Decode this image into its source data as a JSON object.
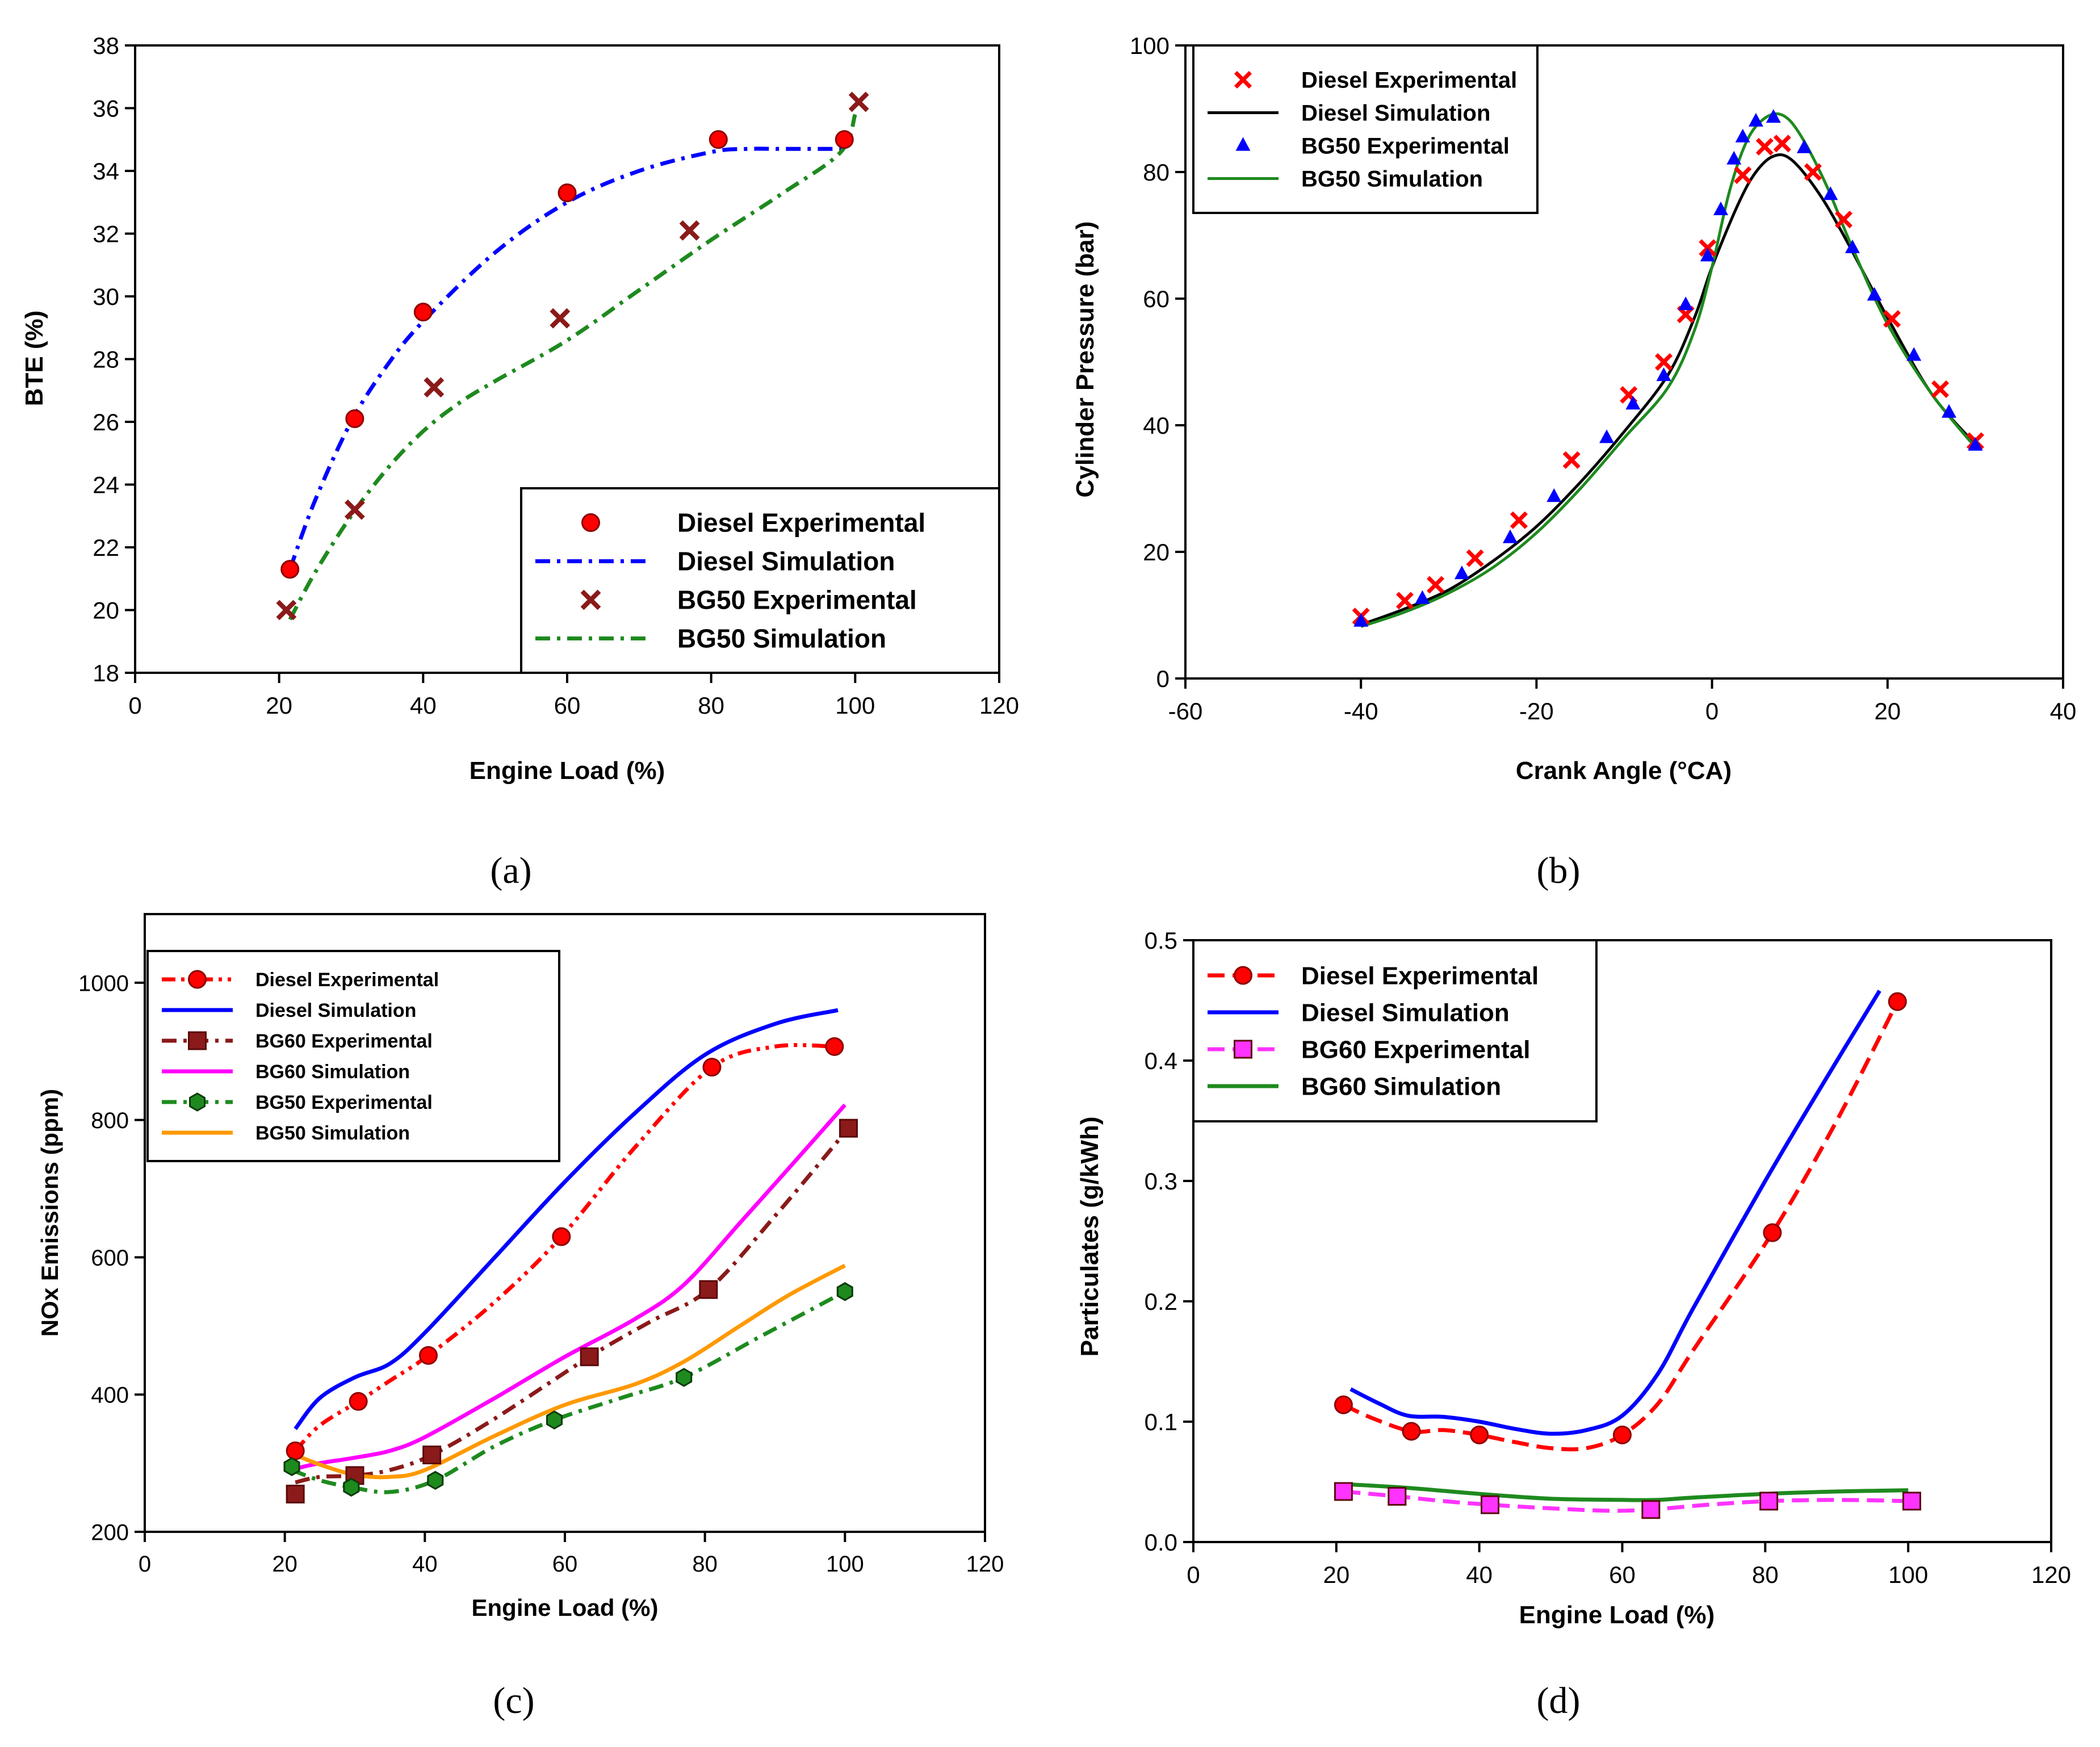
{
  "colors": {
    "diesel_exp_red": "#ff0000",
    "diesel_sim_blue": "#0000ff",
    "bg_exp_darkred": "#8b1a1a",
    "bg50_sim_green": "#1e8a1e",
    "bg60_sim_magenta": "#ff00ff",
    "bg50_sim_orange": "#ff9900",
    "bg60_exp_pink": "#ff33ff"
  },
  "chart_data": [
    {
      "type": "line",
      "caption": "(a)",
      "xlabel": "Engine Load (%)",
      "ylabel": "BTE (%)",
      "xlim": [
        0,
        120
      ],
      "ylim": [
        18,
        38
      ],
      "xticks": [
        0,
        20,
        40,
        60,
        80,
        100,
        120
      ],
      "yticks": [
        18,
        20,
        22,
        24,
        26,
        28,
        30,
        32,
        34,
        36,
        38
      ],
      "legend_position": "bottom-right",
      "series": [
        {
          "name": "Diesel Experimental",
          "kind": "marker",
          "marker": "circle",
          "color": "#ff0000",
          "x": [
            21.5,
            30.5,
            40,
            60,
            81,
            98.5
          ],
          "y": [
            21.3,
            26.1,
            29.5,
            33.3,
            35.0,
            35.0
          ]
        },
        {
          "name": "Diesel Simulation",
          "kind": "line",
          "dash": "dashdot",
          "color": "#0000ff",
          "x": [
            21.5,
            25,
            30,
            35,
            40,
            50,
            60,
            70,
            80,
            85,
            90,
            98.5
          ],
          "y": [
            21.3,
            23.5,
            26.0,
            27.8,
            29.2,
            31.4,
            33.0,
            34.0,
            34.6,
            34.7,
            34.7,
            34.7
          ]
        },
        {
          "name": "BG50 Experimental",
          "kind": "marker",
          "marker": "x",
          "color": "#8b1a1a",
          "x": [
            21,
            30.5,
            41.5,
            59,
            77,
            100.5
          ],
          "y": [
            20.0,
            23.2,
            27.1,
            29.3,
            32.1,
            36.2
          ]
        },
        {
          "name": "BG50 Simulation",
          "kind": "line",
          "dash": "dashdot",
          "color": "#1e8a1e",
          "x": [
            21.5,
            25,
            30,
            35,
            40,
            45,
            50,
            60,
            70,
            80,
            90,
            98,
            100
          ],
          "y": [
            19.7,
            21.2,
            23.0,
            24.5,
            25.7,
            26.6,
            27.3,
            28.6,
            30.2,
            31.8,
            33.3,
            34.6,
            35.8
          ]
        }
      ]
    },
    {
      "type": "line",
      "caption": "(b)",
      "xlabel": "Crank Angle (°CA)",
      "ylabel": "Cylinder Pressure (bar)",
      "xlim": [
        -60,
        40
      ],
      "ylim": [
        0,
        100
      ],
      "xticks": [
        -60,
        -40,
        -20,
        0,
        20,
        40
      ],
      "yticks": [
        0,
        20,
        40,
        60,
        80,
        100
      ],
      "legend_position": "top-left",
      "series": [
        {
          "name": "Diesel Experimental",
          "kind": "marker",
          "marker": "x",
          "color": "#ff0000",
          "x": [
            -40,
            -35,
            -31.5,
            -27,
            -22,
            -16,
            -9.5,
            -5.5,
            -3,
            -0.5,
            3.5,
            6,
            8,
            11.5,
            15,
            20.5,
            26,
            30
          ],
          "y": [
            9.8,
            12.3,
            14.8,
            19.0,
            25.0,
            34.5,
            44.8,
            50.0,
            57.5,
            68.0,
            79.5,
            84.0,
            84.5,
            80.0,
            72.5,
            56.8,
            45.7,
            37.5
          ]
        },
        {
          "name": "Diesel Simulation",
          "kind": "line",
          "dash": "solid",
          "color": "#000000",
          "x": [
            -40,
            -35,
            -30,
            -25,
            -20,
            -15,
            -10,
            -5,
            -2,
            0,
            3,
            5,
            7,
            9,
            12,
            15,
            20,
            25,
            30
          ],
          "y": [
            8.5,
            11.0,
            14.0,
            18.5,
            24.0,
            31.0,
            39.0,
            48.0,
            57.0,
            65.0,
            75.0,
            80.0,
            82.5,
            82.0,
            77.0,
            70.0,
            57.0,
            45.0,
            37.0
          ]
        },
        {
          "name": "BG50 Experimental",
          "kind": "marker",
          "marker": "triangle",
          "color": "#0000ff",
          "x": [
            -40,
            -33,
            -28.5,
            -23,
            -18,
            -12,
            -9,
            -5.5,
            -3,
            -0.5,
            1,
            2.5,
            3.5,
            5,
            7,
            10.5,
            13.5,
            16,
            18.5,
            23,
            27,
            30
          ],
          "y": [
            9.0,
            12.6,
            16.5,
            22.2,
            28.7,
            38.0,
            43.3,
            47.8,
            59.0,
            66.7,
            74.0,
            82.0,
            85.5,
            88.0,
            88.6,
            83.8,
            76.4,
            68.0,
            60.5,
            51.0,
            42.0,
            36.8
          ]
        },
        {
          "name": "BG50 Simulation",
          "kind": "line",
          "dash": "solid",
          "color": "#1e8a1e",
          "x": [
            -40,
            -35,
            -30,
            -25,
            -20,
            -15,
            -10,
            -5,
            -2,
            0,
            2,
            4,
            6,
            8,
            10,
            13,
            16,
            20,
            25,
            30
          ],
          "y": [
            8.2,
            10.5,
            13.5,
            17.5,
            23.0,
            30.0,
            38.0,
            46.0,
            55.0,
            65.0,
            77.0,
            85.0,
            88.5,
            89.0,
            86.0,
            78.0,
            68.0,
            56.0,
            45.0,
            36.5
          ]
        }
      ]
    },
    {
      "type": "line",
      "caption": "(c)",
      "xlabel": "Engine Load (%)",
      "ylabel": "NOx Emissions (ppm)",
      "xlim": [
        0,
        120
      ],
      "ylim": [
        200,
        1100
      ],
      "xticks": [
        0,
        20,
        40,
        60,
        80,
        100,
        120
      ],
      "yticks": [
        200,
        400,
        600,
        800,
        1000
      ],
      "legend_position": "top-left",
      "series": [
        {
          "name": "Diesel Experimental",
          "kind": "line+marker",
          "dash": "dashdotdot",
          "marker": "circle",
          "color": "#ff0000",
          "x": [
            21.5,
            30.5,
            40.5,
            59.5,
            81,
            98.5
          ],
          "y": [
            318,
            390,
            457,
            630,
            877,
            907
          ],
          "line_x": [
            21.5,
            25,
            30.5,
            35,
            40.5,
            50,
            59.5,
            70,
            81,
            90,
            98.5
          ],
          "line_y": [
            318,
            355,
            390,
            420,
            457,
            535,
            630,
            760,
            877,
            907,
            907
          ]
        },
        {
          "name": "Diesel Simulation",
          "kind": "line",
          "dash": "solid",
          "color": "#0000ff",
          "x": [
            21.5,
            25,
            30,
            35,
            40,
            50,
            60,
            70,
            80,
            90,
            99
          ],
          "y": [
            350,
            395,
            425,
            445,
            490,
            600,
            710,
            810,
            895,
            940,
            960
          ]
        },
        {
          "name": "BG60 Experimental",
          "kind": "line+marker",
          "dash": "dashdot",
          "marker": "square",
          "color": "#8b1a1a",
          "x": [
            21.5,
            30,
            41,
            63.5,
            80.5,
            100.5
          ],
          "y": [
            255,
            282,
            312,
            455,
            553,
            788
          ],
          "line_x": [
            21.5,
            25,
            30,
            35,
            41,
            50,
            63.5,
            72,
            80.5,
            90,
            100.5
          ],
          "line_y": [
            272,
            280,
            282,
            290,
            312,
            365,
            455,
            505,
            553,
            660,
            788
          ]
        },
        {
          "name": "BG60 Simulation",
          "kind": "line",
          "dash": "solid",
          "color": "#ff00ff",
          "x": [
            21.5,
            25,
            30,
            35,
            40,
            50,
            60,
            70,
            77,
            85,
            92,
            100
          ],
          "y": [
            292,
            300,
            308,
            318,
            338,
            395,
            455,
            510,
            560,
            650,
            730,
            822
          ]
        },
        {
          "name": "BG50 Experimental",
          "kind": "line+marker",
          "dash": "dashdot",
          "marker": "hexagon",
          "color": "#1e8a1e",
          "x": [
            21,
            29.5,
            41.5,
            58.5,
            77,
            100
          ],
          "y": [
            295,
            265,
            275,
            363,
            425,
            550
          ],
          "line_x": [
            21,
            25,
            29.5,
            35,
            41.5,
            50,
            58.5,
            68,
            77,
            88,
            100
          ],
          "line_y": [
            290,
            275,
            265,
            258,
            275,
            325,
            363,
            395,
            425,
            485,
            550
          ]
        },
        {
          "name": "BG50 Simulation",
          "kind": "line",
          "dash": "solid",
          "color": "#ff9900",
          "x": [
            21.5,
            25,
            30,
            35,
            40,
            50,
            60,
            70,
            77,
            85,
            92,
            100
          ],
          "y": [
            312,
            298,
            283,
            280,
            290,
            340,
            385,
            415,
            448,
            500,
            545,
            588
          ]
        }
      ]
    },
    {
      "type": "line",
      "caption": "(d)",
      "xlabel": "Engine Load (%)",
      "ylabel": "Particulates (g/kWh)",
      "xlim": [
        0,
        120
      ],
      "ylim": [
        0.0,
        0.5
      ],
      "xticks": [
        0,
        20,
        40,
        60,
        80,
        100,
        120
      ],
      "yticks": [
        0.0,
        0.1,
        0.2,
        0.3,
        0.4,
        0.5
      ],
      "legend_position": "top-left",
      "series": [
        {
          "name": "Diesel Experimental",
          "kind": "line+marker",
          "dash": "dashed",
          "marker": "circle",
          "color": "#ff0000",
          "x": [
            21,
            30.5,
            40,
            60,
            81,
            98.5
          ],
          "y": [
            0.114,
            0.092,
            0.089,
            0.089,
            0.257,
            0.449
          ],
          "line_x": [
            21,
            25,
            30.5,
            35,
            40,
            45,
            50,
            55,
            60,
            65,
            70,
            81,
            90,
            98.5
          ],
          "line_y": [
            0.114,
            0.103,
            0.092,
            0.093,
            0.089,
            0.083,
            0.078,
            0.078,
            0.089,
            0.115,
            0.16,
            0.257,
            0.35,
            0.449
          ]
        },
        {
          "name": "Diesel Simulation",
          "kind": "line",
          "dash": "solid",
          "color": "#0000ff",
          "x": [
            22,
            26,
            30,
            35,
            40,
            45,
            50,
            55,
            60,
            65,
            70,
            80,
            88,
            96
          ],
          "y": [
            0.127,
            0.115,
            0.105,
            0.104,
            0.1,
            0.094,
            0.09,
            0.093,
            0.105,
            0.14,
            0.195,
            0.3,
            0.38,
            0.458
          ]
        },
        {
          "name": "BG60 Experimental",
          "kind": "line+marker",
          "dash": "dashed",
          "marker": "square",
          "color": "#ff33ff",
          "x": [
            21,
            28.5,
            41.5,
            64,
            80.5,
            100.5
          ],
          "y": [
            0.042,
            0.038,
            0.031,
            0.027,
            0.034,
            0.034
          ],
          "line_x": [
            21,
            28.5,
            35,
            41.5,
            50,
            58,
            64,
            72,
            80.5,
            90,
            100.5
          ],
          "line_y": [
            0.042,
            0.038,
            0.034,
            0.031,
            0.028,
            0.026,
            0.027,
            0.031,
            0.034,
            0.035,
            0.034
          ]
        },
        {
          "name": "BG60 Simulation",
          "kind": "line",
          "dash": "solid",
          "color": "#1e8a1e",
          "x": [
            21.5,
            30,
            40,
            50,
            60,
            65,
            70,
            80,
            90,
            100
          ],
          "y": [
            0.048,
            0.045,
            0.04,
            0.036,
            0.035,
            0.035,
            0.037,
            0.04,
            0.042,
            0.043
          ]
        }
      ]
    }
  ]
}
